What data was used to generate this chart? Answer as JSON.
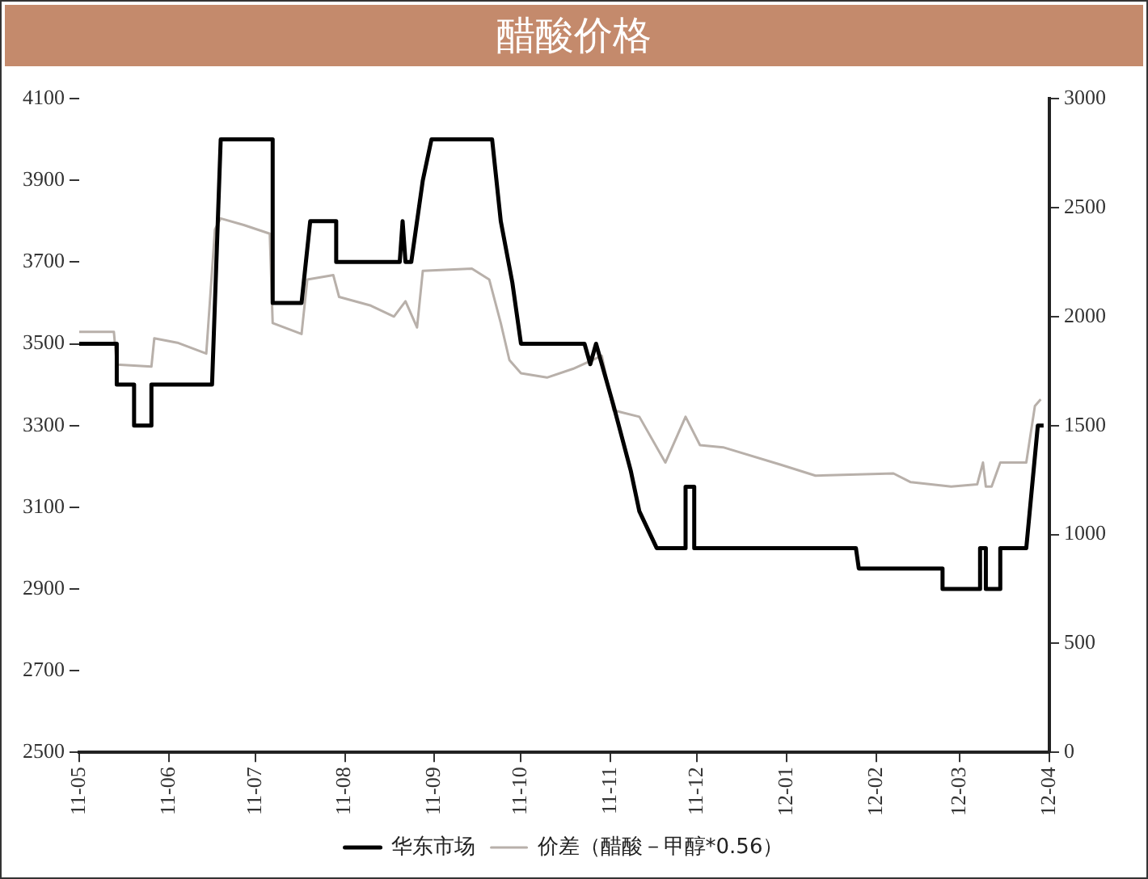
{
  "chart_data": {
    "type": "line",
    "title": "醋酸价格",
    "xlim": [
      "2011-05-01",
      "2012-04-01"
    ],
    "xticks": [
      {
        "value": "2011-05-01",
        "label": "11-05"
      },
      {
        "value": "2011-06-01",
        "label": "11-06"
      },
      {
        "value": "2011-07-01",
        "label": "11-07"
      },
      {
        "value": "2011-08-01",
        "label": "11-08"
      },
      {
        "value": "2011-09-01",
        "label": "11-09"
      },
      {
        "value": "2011-10-01",
        "label": "11-10"
      },
      {
        "value": "2011-11-01",
        "label": "11-11"
      },
      {
        "value": "2011-12-01",
        "label": "11-12"
      },
      {
        "value": "2012-01-01",
        "label": "12-01"
      },
      {
        "value": "2012-02-01",
        "label": "12-02"
      },
      {
        "value": "2012-03-01",
        "label": "12-03"
      },
      {
        "value": "2012-04-01",
        "label": "12-04"
      }
    ],
    "ylim": [
      2500,
      4100
    ],
    "yticks": [
      2500,
      2700,
      2900,
      3100,
      3300,
      3500,
      3700,
      3900,
      4100
    ],
    "y2lim": [
      0,
      3000
    ],
    "y2ticks": [
      0,
      500,
      1000,
      1500,
      2000,
      2500,
      3000
    ],
    "grid": false,
    "legend": "bottom",
    "marker": "none",
    "line_style": "solid",
    "series": [
      {
        "name": "华东市场",
        "color": "#000000",
        "x": [
          "2011-05-01",
          "2011-05-14",
          "2011-05-14",
          "2011-05-20",
          "2011-05-20",
          "2011-05-26",
          "2011-05-26",
          "2011-06-16",
          "2011-06-18",
          "2011-06-19",
          "2011-07-07",
          "2011-07-07",
          "2011-07-17",
          "2011-07-20",
          "2011-07-29",
          "2011-07-29",
          "2011-08-20",
          "2011-08-21",
          "2011-08-22",
          "2011-08-24",
          "2011-08-28",
          "2011-08-31",
          "2011-09-21",
          "2011-09-24",
          "2011-09-28",
          "2011-10-01",
          "2011-10-23",
          "2011-10-25",
          "2011-10-27",
          "2011-11-02",
          "2011-11-08",
          "2011-11-11",
          "2011-11-17",
          "2011-11-27",
          "2011-11-27",
          "2011-11-30",
          "2011-11-30",
          "2012-01-25",
          "2012-01-26",
          "2012-02-24",
          "2012-02-24",
          "2012-03-08",
          "2012-03-08",
          "2012-03-10",
          "2012-03-10",
          "2012-03-15",
          "2012-03-15",
          "2012-03-24",
          "2012-03-28",
          "2012-03-30"
        ],
        "values": [
          3500,
          3500,
          3400,
          3400,
          3300,
          3300,
          3400,
          3400,
          3800,
          4000,
          4000,
          3600,
          3600,
          3800,
          3800,
          3700,
          3700,
          3800,
          3700,
          3700,
          3900,
          4000,
          4000,
          3800,
          3650,
          3500,
          3500,
          3450,
          3500,
          3350,
          3190,
          3090,
          3000,
          3000,
          3150,
          3150,
          3000,
          3000,
          2950,
          2950,
          2900,
          2900,
          3000,
          3000,
          2900,
          2900,
          3000,
          3000,
          3300,
          3300
        ]
      },
      {
        "name": "价差（醋酸－甲醇*0.56）",
        "color": "#b8b0aa",
        "axis": "y2",
        "x": [
          "2011-05-01",
          "2011-05-13",
          "2011-05-14",
          "2011-05-26",
          "2011-05-27",
          "2011-06-04",
          "2011-06-14",
          "2011-06-17",
          "2011-06-19",
          "2011-06-27",
          "2011-07-06",
          "2011-07-07",
          "2011-07-17",
          "2011-07-19",
          "2011-07-28",
          "2011-07-30",
          "2011-08-10",
          "2011-08-18",
          "2011-08-22",
          "2011-08-26",
          "2011-08-28",
          "2011-09-14",
          "2011-09-20",
          "2011-09-24",
          "2011-09-27",
          "2011-10-01",
          "2011-10-10",
          "2011-10-19",
          "2011-10-29",
          "2011-11-02",
          "2011-11-11",
          "2011-11-20",
          "2011-11-27",
          "2011-12-02",
          "2011-12-10",
          "2011-12-30",
          "2012-01-11",
          "2012-02-07",
          "2012-02-13",
          "2012-02-27",
          "2012-03-07",
          "2012-03-09",
          "2012-03-10",
          "2012-03-12",
          "2012-03-15",
          "2012-03-24",
          "2012-03-27",
          "2012-03-29"
        ],
        "values": [
          1930,
          1930,
          1780,
          1770,
          1900,
          1880,
          1830,
          2400,
          2450,
          2420,
          2380,
          1970,
          1920,
          2170,
          2190,
          2090,
          2050,
          2000,
          2070,
          1950,
          2210,
          2220,
          2170,
          1970,
          1800,
          1740,
          1720,
          1760,
          1820,
          1570,
          1540,
          1330,
          1540,
          1410,
          1400,
          1320,
          1270,
          1280,
          1240,
          1220,
          1230,
          1330,
          1220,
          1220,
          1330,
          1330,
          1590,
          1620
        ]
      }
    ]
  }
}
